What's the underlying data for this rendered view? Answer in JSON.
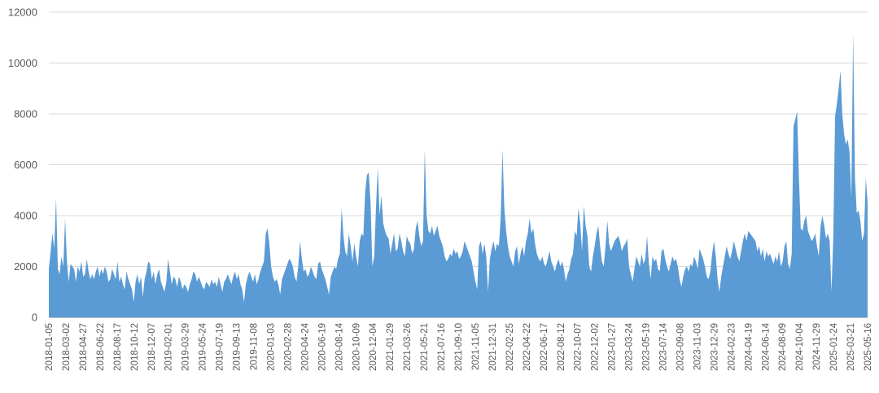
{
  "chart_data": {
    "type": "area",
    "title": "",
    "xlabel": "",
    "ylabel": "",
    "ylim": [
      0,
      12000
    ],
    "yticks": [
      0,
      2000,
      4000,
      6000,
      8000,
      10000,
      12000
    ],
    "grid": true,
    "legend": "none",
    "colors": {
      "area": "#5b9bd5",
      "grid": "#d9d9d9",
      "text": "#595959"
    },
    "xtick_labels": [
      "2018-01-05",
      "2018-03-02",
      "2018-04-27",
      "2018-06-22",
      "2018-08-17",
      "2018-10-12",
      "2018-12-07",
      "2019-02-01",
      "2019-03-29",
      "2019-05-24",
      "2019-07-19",
      "2019-09-13",
      "2019-11-08",
      "2020-01-03",
      "2020-02-28",
      "2020-04-24",
      "2020-06-19",
      "2020-08-14",
      "2020-10-09",
      "2020-12-04",
      "2021-01-29",
      "2021-03-26",
      "2021-05-21",
      "2021-07-16",
      "2021-09-10",
      "2021-11-05",
      "2021-12-31",
      "2022-02-25",
      "2022-04-22",
      "2022-06-17",
      "2022-08-12",
      "2022-10-07",
      "2022-12-02",
      "2023-01-27",
      "2023-03-24",
      "2023-05-19",
      "2023-07-14",
      "2023-09-08",
      "2023-11-03",
      "2023-12-29",
      "2024-02-23",
      "2024-04-19",
      "2024-06-14",
      "2024-08-09",
      "2024-10-04",
      "2024-11-29",
      "2025-01-24",
      "2025-03-21",
      "2025-05-16"
    ],
    "series": [
      {
        "values": [
          1900,
          2600,
          3300,
          2700,
          4700,
          1900,
          1700,
          2400,
          2000,
          3900,
          2200,
          1400,
          2100,
          2000,
          1900,
          1400,
          2000,
          1800,
          2200,
          1600,
          1700,
          2300,
          1800,
          1500,
          1700,
          1500,
          1800,
          2000,
          1600,
          1900,
          1700,
          2000,
          1800,
          1400,
          1500,
          1900,
          1700,
          1500,
          2200,
          1400,
          1600,
          1300,
          1100,
          1800,
          1500,
          1300,
          1100,
          600,
          1400,
          1700,
          1300,
          1600,
          800,
          1500,
          1800,
          2200,
          2100,
          1500,
          1800,
          1300,
          1700,
          1900,
          1400,
          1200,
          1000,
          1400,
          2300,
          1800,
          1300,
          1600,
          1500,
          1200,
          1600,
          1400,
          1100,
          1300,
          1200,
          1000,
          1300,
          1500,
          1800,
          1700,
          1400,
          1600,
          1400,
          1200,
          1100,
          1400,
          1300,
          1200,
          1500,
          1300,
          1400,
          1200,
          1600,
          1300,
          1000,
          1400,
          1500,
          1700,
          1500,
          1300,
          1600,
          1800,
          1500,
          1700,
          1300,
          1100,
          600,
          1300,
          1600,
          1800,
          1600,
          1400,
          1700,
          1300,
          1500,
          1800,
          2000,
          2200,
          3300,
          3500,
          2900,
          2000,
          1600,
          1400,
          1500,
          1300,
          900,
          1500,
          1700,
          1900,
          2100,
          2300,
          2200,
          2000,
          1600,
          1400,
          2000,
          3000,
          2300,
          1800,
          1900,
          1600,
          1700,
          2000,
          1800,
          1600,
          1500,
          2100,
          2200,
          1900,
          1700,
          1500,
          1200,
          900,
          1600,
          1800,
          2000,
          1900,
          2300,
          2500,
          4300,
          3200,
          2600,
          2400,
          3300,
          2800,
          2200,
          2900,
          2400,
          2000,
          3000,
          3300,
          3200,
          4900,
          5600,
          5700,
          4500,
          2000,
          2400,
          4300,
          5900,
          4000,
          4800,
          3700,
          3400,
          3200,
          3100,
          2500,
          2900,
          3300,
          2600,
          2700,
          3300,
          3000,
          2600,
          2400,
          3200,
          3000,
          2900,
          2500,
          2700,
          3500,
          3800,
          3200,
          2800,
          3000,
          6600,
          4000,
          3400,
          3300,
          3600,
          3200,
          3400,
          3600,
          3200,
          3000,
          2800,
          2400,
          2200,
          2300,
          2500,
          2400,
          2700,
          2500,
          2600,
          2300,
          2400,
          2600,
          3000,
          2800,
          2600,
          2400,
          2200,
          1800,
          1400,
          1100,
          2800,
          3000,
          2500,
          2900,
          2400,
          1000,
          2300,
          2700,
          3000,
          2600,
          2900,
          2800,
          3900,
          6600,
          4300,
          3400,
          2800,
          2400,
          2200,
          2000,
          2600,
          2800,
          2100,
          2500,
          2800,
          2400,
          3000,
          3300,
          3900,
          3300,
          3500,
          2900,
          2500,
          2300,
          2200,
          2400,
          2100,
          2000,
          2300,
          2600,
          2200,
          2000,
          1800,
          2100,
          2300,
          2000,
          2200,
          1900,
          1400,
          1700,
          1900,
          2300,
          2500,
          3400,
          3200,
          4300,
          3700,
          2600,
          4400,
          3600,
          3200,
          2000,
          1800,
          2400,
          2800,
          3300,
          3600,
          2800,
          2200,
          2000,
          2800,
          3800,
          2900,
          2600,
          2800,
          3000,
          3100,
          3200,
          3000,
          2600,
          2800,
          2900,
          3100,
          2000,
          1700,
          1400,
          1900,
          2400,
          2200,
          2000,
          2500,
          2100,
          2300,
          3200,
          2100,
          1500,
          2400,
          2200,
          2300,
          1900,
          1800,
          2600,
          2700,
          2300,
          2000,
          1800,
          2100,
          2400,
          2200,
          2300,
          2000,
          1500,
          1200,
          1600,
          1900,
          2000,
          1800,
          2100,
          2000,
          2400,
          2200,
          1900,
          2700,
          2500,
          2300,
          2000,
          1600,
          1500,
          1800,
          2500,
          3000,
          2400,
          1500,
          1000,
          1600,
          2000,
          2400,
          2800,
          2500,
          2300,
          2600,
          3000,
          2700,
          2400,
          2200,
          2600,
          3000,
          3300,
          3000,
          3400,
          3300,
          3200,
          3100,
          3000,
          2600,
          2800,
          2400,
          2700,
          2200,
          2600,
          2400,
          2500,
          2300,
          2100,
          2400,
          2200,
          2600,
          2000,
          2200,
          2800,
          3000,
          2100,
          1900,
          2500,
          7500,
          7800,
          8100,
          5500,
          3500,
          3400,
          3800,
          4000,
          3400,
          3200,
          3000,
          3100,
          3300,
          2800,
          2400,
          3600,
          4000,
          3600,
          3100,
          3300,
          3000,
          1000,
          3100,
          7900,
          8400,
          9000,
          9700,
          8000,
          7200,
          6800,
          7000,
          6500,
          4700,
          11200,
          5500,
          4100,
          4200,
          3800,
          3000,
          3300,
          5500,
          4500
        ]
      }
    ]
  }
}
